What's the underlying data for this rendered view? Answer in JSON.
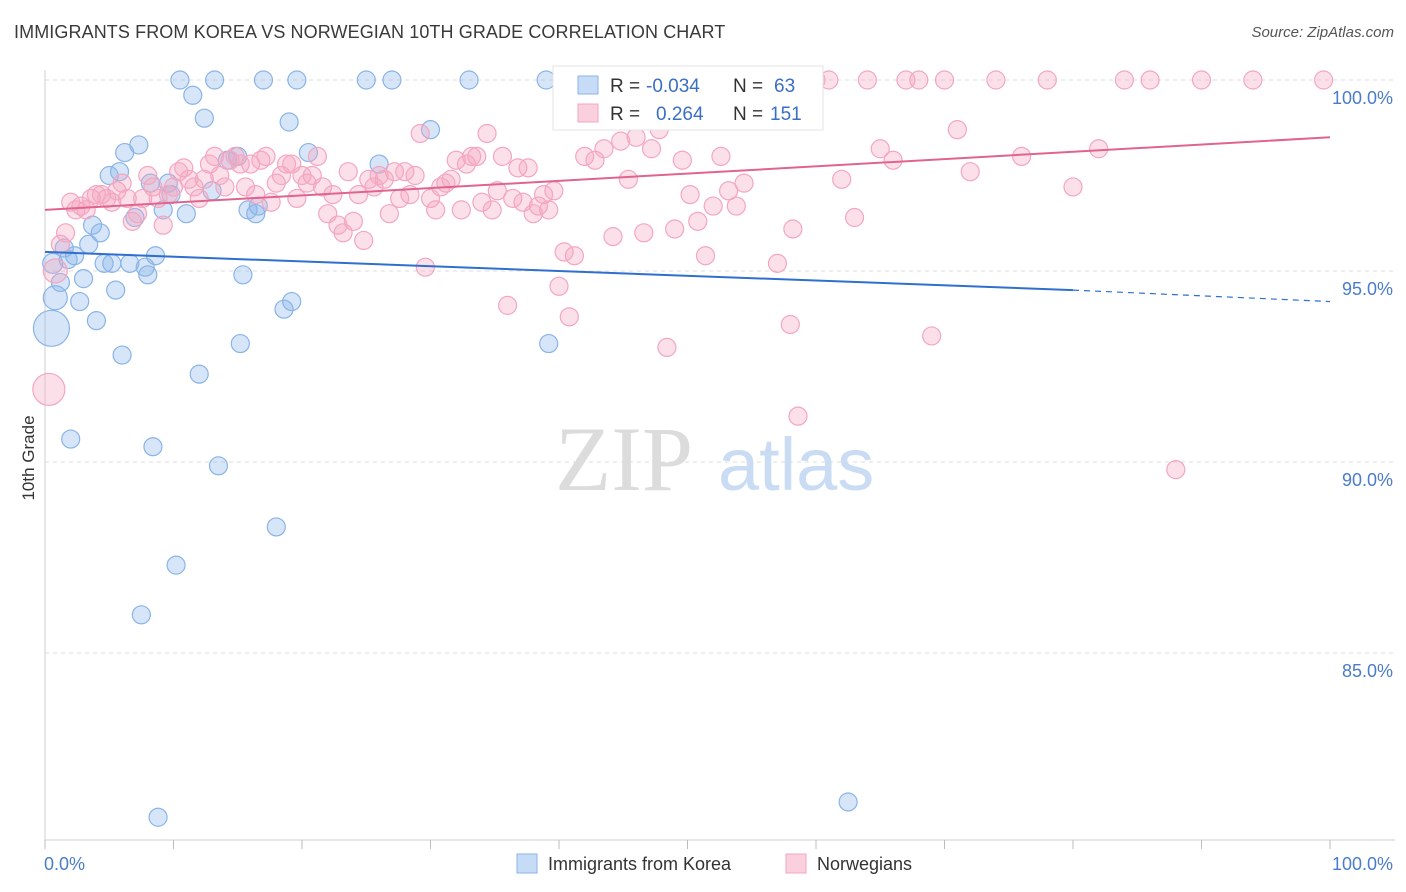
{
  "title": "IMMIGRANTS FROM KOREA VS NORWEGIAN 10TH GRADE CORRELATION CHART",
  "source": "Source: ZipAtlas.com",
  "watermark": {
    "zip": "ZIP",
    "atlas": "atlas"
  },
  "chart_data": {
    "type": "scatter",
    "ylabel": "10th Grade",
    "xlim": [
      0,
      100
    ],
    "ylim": [
      80.5,
      100.8
    ],
    "x_tick_labels": [
      "0.0%",
      "100.0%"
    ],
    "y_ticks": [
      85,
      90,
      95,
      100
    ],
    "y_tick_labels": [
      "85.0%",
      "90.0%",
      "95.0%",
      "100.0%"
    ],
    "grid": true,
    "legend": {
      "position": "top-center",
      "entries": [
        {
          "r_label": "R =",
          "r": "-0.034",
          "n_label": "N =",
          "n": "63"
        },
        {
          "r_label": "R =",
          "r": "0.264",
          "n_label": "N =",
          "n": "151"
        }
      ]
    },
    "series": [
      {
        "name": "Immigrants from Korea",
        "color": "#8ab4e8",
        "line_color": "#2f6fcf",
        "trend": {
          "x0": 0,
          "y0": 95.5,
          "x1": 80,
          "y1": 94.5,
          "dashed_to": 100,
          "dashed_y": 94.2
        },
        "points": [
          [
            0.5,
            93.5,
            18
          ],
          [
            0.6,
            95.2,
            10
          ],
          [
            0.8,
            94.3,
            12
          ],
          [
            1.2,
            94.7,
            9
          ],
          [
            1.5,
            95.6,
            9
          ],
          [
            1.8,
            95.3,
            9
          ],
          [
            2.0,
            90.6,
            9
          ],
          [
            2.3,
            95.4,
            9
          ],
          [
            2.7,
            94.2,
            9
          ],
          [
            3.0,
            94.8,
            9
          ],
          [
            3.4,
            95.7,
            9
          ],
          [
            3.7,
            96.2,
            9
          ],
          [
            4.0,
            93.7,
            9
          ],
          [
            4.3,
            96.0,
            9
          ],
          [
            4.6,
            95.2,
            9
          ],
          [
            5.0,
            97.5,
            9
          ],
          [
            5.2,
            95.2,
            9
          ],
          [
            5.5,
            94.5,
            9
          ],
          [
            5.8,
            97.6,
            9
          ],
          [
            6.0,
            92.8,
            9
          ],
          [
            6.2,
            98.1,
            9
          ],
          [
            6.6,
            95.2,
            9
          ],
          [
            7.0,
            96.4,
            9
          ],
          [
            7.3,
            98.3,
            9
          ],
          [
            7.5,
            86.0,
            9
          ],
          [
            7.8,
            95.1,
            9
          ],
          [
            8.0,
            94.9,
            9
          ],
          [
            8.2,
            97.3,
            9
          ],
          [
            8.4,
            90.4,
            9
          ],
          [
            8.6,
            95.4,
            9
          ],
          [
            8.8,
            80.7,
            9
          ],
          [
            9.2,
            96.6,
            9
          ],
          [
            9.6,
            97.3,
            9
          ],
          [
            9.8,
            97.0,
            9
          ],
          [
            10.2,
            87.3,
            9
          ],
          [
            10.5,
            100.0,
            9
          ],
          [
            11.0,
            96.5,
            9
          ],
          [
            11.5,
            99.6,
            9
          ],
          [
            12.0,
            92.3,
            9
          ],
          [
            12.4,
            99.0,
            9
          ],
          [
            13.0,
            97.1,
            9
          ],
          [
            13.2,
            100.0,
            9
          ],
          [
            13.5,
            89.9,
            9
          ],
          [
            14.2,
            97.9,
            9
          ],
          [
            15.0,
            98.0,
            9
          ],
          [
            15.2,
            93.1,
            9
          ],
          [
            15.4,
            94.9,
            9
          ],
          [
            15.8,
            96.6,
            9
          ],
          [
            16.4,
            96.5,
            9
          ],
          [
            16.6,
            96.7,
            9
          ],
          [
            17.0,
            100.0,
            9
          ],
          [
            18.0,
            88.3,
            9
          ],
          [
            18.6,
            94.0,
            9
          ],
          [
            19.0,
            98.9,
            9
          ],
          [
            19.2,
            94.2,
            9
          ],
          [
            19.6,
            100.0,
            9
          ],
          [
            20.5,
            98.1,
            9
          ],
          [
            25.0,
            100.0,
            9
          ],
          [
            26.0,
            97.8,
            9
          ],
          [
            27.0,
            100.0,
            9
          ],
          [
            30.0,
            98.7,
            9
          ],
          [
            33.0,
            100.0,
            9
          ],
          [
            39.0,
            100.0,
            9
          ],
          [
            39.2,
            93.1,
            9
          ],
          [
            62.5,
            81.1,
            9
          ]
        ]
      },
      {
        "name": "Norwegians",
        "color": "#f4a6c0",
        "line_color": "#e0648f",
        "trend": {
          "x0": 0,
          "y0": 96.6,
          "x1": 100,
          "y1": 98.5
        },
        "points": [
          [
            0.3,
            91.9,
            16
          ],
          [
            0.8,
            95.0,
            12
          ],
          [
            1.2,
            95.7,
            9
          ],
          [
            1.6,
            96.0,
            9
          ],
          [
            2.0,
            96.8,
            9
          ],
          [
            2.4,
            96.6,
            9
          ],
          [
            2.8,
            96.7,
            9
          ],
          [
            3.2,
            96.6,
            9
          ],
          [
            3.6,
            96.9,
            9
          ],
          [
            4.0,
            97.0,
            9
          ],
          [
            4.4,
            97.0,
            9
          ],
          [
            4.8,
            96.9,
            9
          ],
          [
            5.2,
            96.8,
            9
          ],
          [
            5.6,
            97.1,
            9
          ],
          [
            6.0,
            97.3,
            9
          ],
          [
            6.4,
            96.9,
            9
          ],
          [
            6.8,
            96.3,
            9
          ],
          [
            7.2,
            96.5,
            9
          ],
          [
            7.6,
            96.9,
            9
          ],
          [
            8.0,
            97.5,
            9
          ],
          [
            8.4,
            97.2,
            9
          ],
          [
            8.8,
            96.9,
            9
          ],
          [
            9.2,
            96.2,
            9
          ],
          [
            9.6,
            97.0,
            9
          ],
          [
            10.0,
            97.2,
            9
          ],
          [
            10.4,
            97.6,
            9
          ],
          [
            10.8,
            97.7,
            9
          ],
          [
            11.2,
            97.4,
            9
          ],
          [
            11.6,
            97.2,
            9
          ],
          [
            12.0,
            96.9,
            9
          ],
          [
            12.4,
            97.4,
            9
          ],
          [
            12.8,
            97.8,
            9
          ],
          [
            13.2,
            98.0,
            9
          ],
          [
            13.6,
            97.5,
            9
          ],
          [
            14.0,
            97.2,
            9
          ],
          [
            14.4,
            97.9,
            9
          ],
          [
            14.8,
            98.0,
            9
          ],
          [
            15.2,
            97.8,
            9
          ],
          [
            15.6,
            97.2,
            9
          ],
          [
            16.0,
            97.8,
            9
          ],
          [
            16.4,
            97.0,
            9
          ],
          [
            16.8,
            97.9,
            9
          ],
          [
            17.2,
            98.0,
            9
          ],
          [
            17.6,
            96.8,
            9
          ],
          [
            18.0,
            97.3,
            9
          ],
          [
            18.4,
            97.5,
            9
          ],
          [
            18.8,
            97.8,
            9
          ],
          [
            19.2,
            97.8,
            9
          ],
          [
            19.6,
            96.9,
            9
          ],
          [
            20.0,
            97.5,
            9
          ],
          [
            20.4,
            97.3,
            9
          ],
          [
            20.8,
            97.5,
            9
          ],
          [
            21.2,
            98.0,
            9
          ],
          [
            21.6,
            97.2,
            9
          ],
          [
            22.0,
            96.5,
            9
          ],
          [
            22.4,
            97.0,
            9
          ],
          [
            22.8,
            96.2,
            9
          ],
          [
            23.2,
            96.0,
            9
          ],
          [
            23.6,
            97.6,
            9
          ],
          [
            24.0,
            96.3,
            9
          ],
          [
            24.4,
            97.0,
            9
          ],
          [
            24.8,
            95.8,
            9
          ],
          [
            25.2,
            97.4,
            9
          ],
          [
            25.6,
            97.2,
            9
          ],
          [
            26.0,
            97.5,
            9
          ],
          [
            26.4,
            97.4,
            9
          ],
          [
            26.8,
            96.5,
            9
          ],
          [
            27.2,
            97.6,
            9
          ],
          [
            27.6,
            96.9,
            9
          ],
          [
            28.0,
            97.6,
            9
          ],
          [
            28.4,
            97.0,
            9
          ],
          [
            28.8,
            97.5,
            9
          ],
          [
            29.2,
            98.6,
            9
          ],
          [
            29.6,
            95.1,
            9
          ],
          [
            30.0,
            96.9,
            9
          ],
          [
            30.4,
            96.6,
            9
          ],
          [
            30.8,
            97.2,
            9
          ],
          [
            31.2,
            97.3,
            9
          ],
          [
            31.6,
            97.4,
            9
          ],
          [
            32.0,
            97.9,
            9
          ],
          [
            32.4,
            96.6,
            9
          ],
          [
            32.8,
            97.8,
            9
          ],
          [
            33.2,
            98.0,
            9
          ],
          [
            33.6,
            98.0,
            9
          ],
          [
            34.0,
            96.8,
            9
          ],
          [
            34.4,
            98.6,
            9
          ],
          [
            34.8,
            96.6,
            9
          ],
          [
            35.2,
            97.1,
            9
          ],
          [
            35.6,
            98.0,
            9
          ],
          [
            36.0,
            94.1,
            9
          ],
          [
            36.4,
            96.9,
            9
          ],
          [
            36.8,
            97.7,
            9
          ],
          [
            37.2,
            96.8,
            9
          ],
          [
            37.6,
            97.7,
            9
          ],
          [
            38.0,
            96.5,
            9
          ],
          [
            38.4,
            96.7,
            9
          ],
          [
            38.8,
            97.0,
            9
          ],
          [
            39.2,
            96.6,
            9
          ],
          [
            39.6,
            97.1,
            9
          ],
          [
            40.0,
            94.6,
            9
          ],
          [
            40.4,
            95.5,
            9
          ],
          [
            40.8,
            93.8,
            9
          ],
          [
            41.2,
            95.4,
            9
          ],
          [
            42.0,
            98.0,
            9
          ],
          [
            42.8,
            97.9,
            9
          ],
          [
            43.5,
            98.2,
            9
          ],
          [
            44.2,
            95.9,
            9
          ],
          [
            44.8,
            98.4,
            9
          ],
          [
            45.4,
            97.4,
            9
          ],
          [
            46.0,
            98.5,
            9
          ],
          [
            46.6,
            96.0,
            9
          ],
          [
            47.2,
            98.2,
            9
          ],
          [
            47.8,
            98.7,
            9
          ],
          [
            48.4,
            93.0,
            9
          ],
          [
            49.0,
            96.1,
            9
          ],
          [
            49.6,
            97.9,
            9
          ],
          [
            50.2,
            97.0,
            9
          ],
          [
            50.8,
            96.3,
            9
          ],
          [
            51.4,
            95.4,
            9
          ],
          [
            52.0,
            96.7,
            9
          ],
          [
            52.6,
            98.0,
            9
          ],
          [
            53.2,
            97.1,
            9
          ],
          [
            53.8,
            96.7,
            9
          ],
          [
            54.4,
            97.3,
            9
          ],
          [
            55.0,
            100.0,
            9
          ],
          [
            55.6,
            99.0,
            9
          ],
          [
            57.0,
            95.2,
            9
          ],
          [
            58.0,
            93.6,
            9
          ],
          [
            58.6,
            91.2,
            9
          ],
          [
            60.0,
            100.0,
            9
          ],
          [
            61.0,
            100.0,
            9
          ],
          [
            62.0,
            97.4,
            9
          ],
          [
            63.0,
            96.4,
            9
          ],
          [
            64.0,
            100.0,
            9
          ],
          [
            65.0,
            98.2,
            9
          ],
          [
            66.0,
            97.9,
            9
          ],
          [
            67.0,
            100.0,
            9
          ],
          [
            68.0,
            100.0,
            9
          ],
          [
            69.0,
            93.3,
            9
          ],
          [
            70.0,
            100.0,
            9
          ],
          [
            71.0,
            98.7,
            9
          ],
          [
            72.0,
            97.6,
            9
          ],
          [
            74.0,
            100.0,
            9
          ],
          [
            76.0,
            98.0,
            9
          ],
          [
            78.0,
            100.0,
            9
          ],
          [
            80.0,
            97.2,
            9
          ],
          [
            82.0,
            98.2,
            9
          ],
          [
            84.0,
            100.0,
            9
          ],
          [
            86.0,
            100.0,
            9
          ],
          [
            88.0,
            89.8,
            9
          ],
          [
            90.0,
            100.0,
            9
          ],
          [
            94.0,
            100.0,
            9
          ],
          [
            99.5,
            100.0,
            9
          ],
          [
            58.2,
            96.1,
            9
          ]
        ]
      }
    ]
  }
}
